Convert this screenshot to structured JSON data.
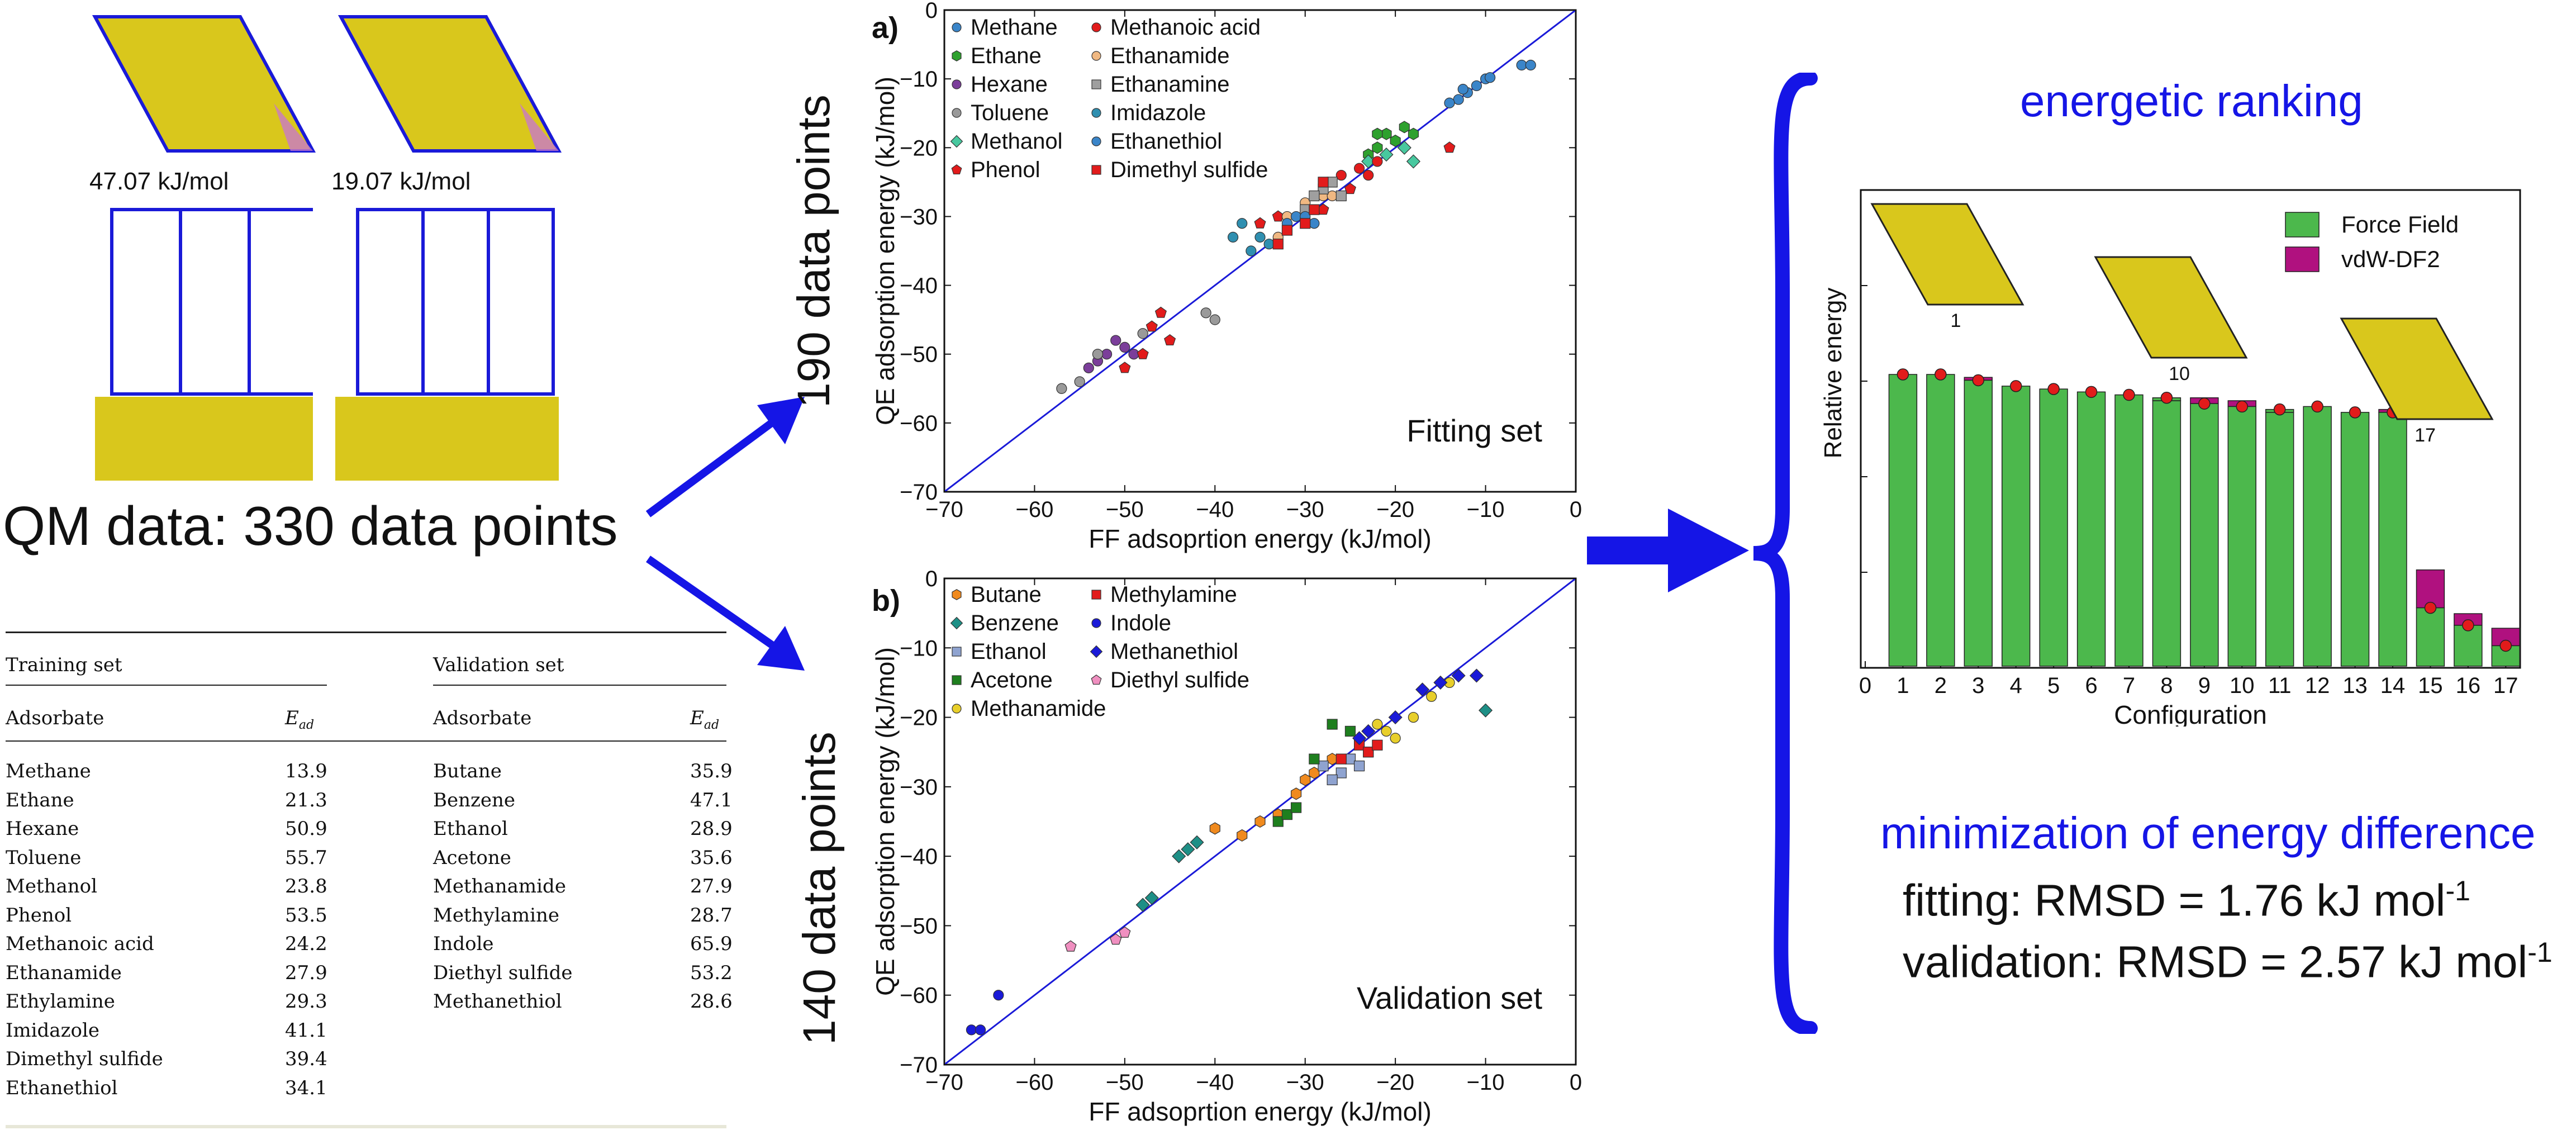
{
  "left_panel": {
    "snapshot1_energy": "47.07 kJ/mol",
    "snapshot2_energy": "19.07 kJ/mol",
    "qm_data_title": "QM data: 330 data points"
  },
  "table": {
    "training_header": "Training set",
    "validation_header": "Validation set",
    "col_adsorbate": "Adsorbate",
    "col_ead": "E",
    "col_ead_sub": "ad",
    "training_rows": [
      {
        "name": "Methane",
        "value": "13.9"
      },
      {
        "name": "Ethane",
        "value": "21.3"
      },
      {
        "name": "Hexane",
        "value": "50.9"
      },
      {
        "name": "Toluene",
        "value": "55.7"
      },
      {
        "name": "Methanol",
        "value": "23.8"
      },
      {
        "name": "Phenol",
        "value": "53.5"
      },
      {
        "name": "Methanoic acid",
        "value": "24.2"
      },
      {
        "name": "Ethanamide",
        "value": "27.9"
      },
      {
        "name": "Ethylamine",
        "value": "29.3"
      },
      {
        "name": "Imidazole",
        "value": "41.1"
      },
      {
        "name": "Dimethyl sulfide",
        "value": "39.4"
      },
      {
        "name": "Ethanethiol",
        "value": "34.1"
      }
    ],
    "validation_rows": [
      {
        "name": "Butane",
        "value": "35.9"
      },
      {
        "name": "Benzene",
        "value": "47.1"
      },
      {
        "name": "Ethanol",
        "value": "28.9"
      },
      {
        "name": "Acetone",
        "value": "35.6"
      },
      {
        "name": "Methanamide",
        "value": "27.9"
      },
      {
        "name": "Methylamine",
        "value": "28.7"
      },
      {
        "name": "Indole",
        "value": "65.9"
      },
      {
        "name": "Diethyl sulfide",
        "value": "53.2"
      },
      {
        "name": "Methanethiol",
        "value": "28.6"
      }
    ]
  },
  "side_labels": {
    "fitting_points": "190 data points",
    "validation_points": "140 data points"
  },
  "right_panel": {
    "ranking_title": "energetic ranking",
    "minimization_title": "minimization of energy difference",
    "fitting_rmsd": "fitting: RMSD = 1.76 kJ mol",
    "validation_rmsd": "validation: RMSD = 2.57 kJ mol",
    "rmsd_exponent": "-1",
    "config_labels": [
      "1",
      "10",
      "17"
    ]
  },
  "colors": {
    "accent_blue": "#1515e6",
    "ff_green": "#4cb84c",
    "vdw_magenta": "#b0117f",
    "point_red": "#e21b1b"
  },
  "chart_data": [
    {
      "id": "a",
      "panel_label": "a)",
      "type": "scatter",
      "xlabel": "FF adsoprtion energy (kJ/mol)",
      "ylabel": "QE adsorption energy (kJ/mol)",
      "annotation": "Fitting set",
      "xlim": [
        -70,
        0
      ],
      "ylim": [
        -70,
        0
      ],
      "xticks": [
        -70,
        -60,
        -50,
        -40,
        -30,
        -20,
        -10,
        0
      ],
      "yticks": [
        0,
        -10,
        -20,
        -30,
        -40,
        -50,
        -60,
        -70
      ],
      "diagonal": true,
      "legend_cols": [
        [
          "Methane",
          "Ethane",
          "Hexane",
          "Toluene",
          "Methanol",
          "Phenol"
        ],
        [
          "Methanoic acid",
          "Ethanamide",
          "Ethanamine",
          "Imidazole",
          "Ethanethiol",
          "Dimethyl sulfide"
        ]
      ],
      "series": [
        {
          "name": "Methane",
          "color": "#3a85c9",
          "marker": "circle",
          "points": [
            [
              -13,
              -13
            ],
            [
              -12,
              -12
            ],
            [
              -11,
              -11
            ],
            [
              -10,
              -10
            ],
            [
              -9.5,
              -9.8
            ],
            [
              -6,
              -8
            ],
            [
              -5,
              -8
            ],
            [
              -14,
              -13.5
            ],
            [
              -12.5,
              -11.5
            ]
          ]
        },
        {
          "name": "Ethane",
          "color": "#2ea12e",
          "marker": "hex",
          "points": [
            [
              -22,
              -20
            ],
            [
              -21,
              -18
            ],
            [
              -20,
              -19
            ],
            [
              -19,
              -17
            ],
            [
              -23,
              -21
            ],
            [
              -18,
              -18
            ],
            [
              -22,
              -18
            ]
          ]
        },
        {
          "name": "Hexane",
          "color": "#7b3e9a",
          "marker": "circle",
          "points": [
            [
              -52,
              -50
            ],
            [
              -50,
              -49
            ],
            [
              -54,
              -52
            ],
            [
              -49,
              -50
            ],
            [
              -51,
              -48
            ],
            [
              -53,
              -51
            ]
          ]
        },
        {
          "name": "Toluene",
          "color": "#9a9a9a",
          "marker": "circle",
          "points": [
            [
              -57,
              -55
            ],
            [
              -55,
              -54
            ],
            [
              -53,
              -50
            ],
            [
              -48,
              -47
            ],
            [
              -41,
              -44
            ],
            [
              -40,
              -45
            ]
          ]
        },
        {
          "name": "Methanol",
          "color": "#48c89f",
          "marker": "diamond",
          "points": [
            [
              -23,
              -22
            ],
            [
              -21,
              -21
            ],
            [
              -18,
              -22
            ],
            [
              -19,
              -20
            ]
          ]
        },
        {
          "name": "Phenol",
          "color": "#e21b1b",
          "marker": "pentagon",
          "points": [
            [
              -50,
              -52
            ],
            [
              -48,
              -50
            ],
            [
              -46,
              -44
            ],
            [
              -45,
              -48
            ],
            [
              -47,
              -46
            ],
            [
              -33,
              -30
            ],
            [
              -28,
              -29
            ],
            [
              -25,
              -26
            ],
            [
              -14,
              -20
            ],
            [
              -35,
              -31
            ]
          ]
        },
        {
          "name": "Methanoic acid",
          "color": "#e21b1b",
          "marker": "circle",
          "points": [
            [
              -26,
              -24
            ],
            [
              -24,
              -23
            ],
            [
              -22,
              -22
            ],
            [
              -23,
              -24
            ]
          ]
        },
        {
          "name": "Ethanamide",
          "color": "#f0b882",
          "marker": "circle",
          "points": [
            [
              -30,
              -28
            ],
            [
              -28,
              -27
            ],
            [
              -27,
              -27
            ],
            [
              -33,
              -33
            ],
            [
              -32,
              -30
            ]
          ]
        },
        {
          "name": "Ethanamine",
          "color": "#9f9f9f",
          "marker": "square",
          "points": [
            [
              -30,
              -29
            ],
            [
              -28,
              -26
            ],
            [
              -27,
              -25
            ],
            [
              -26,
              -27
            ],
            [
              -29,
              -27
            ]
          ]
        },
        {
          "name": "Imidazole",
          "color": "#2f8fb0",
          "marker": "circle",
          "points": [
            [
              -38,
              -33
            ],
            [
              -36,
              -35
            ],
            [
              -35,
              -33
            ],
            [
              -37,
              -31
            ],
            [
              -34,
              -34
            ]
          ]
        },
        {
          "name": "Ethanethiol",
          "color": "#3a85c9",
          "marker": "circle",
          "points": [
            [
              -32,
              -31
            ],
            [
              -31,
              -30
            ],
            [
              -30,
              -30
            ],
            [
              -29,
              -31
            ]
          ]
        },
        {
          "name": "Dimethyl sulfide",
          "color": "#e21b1b",
          "marker": "square",
          "points": [
            [
              -33,
              -34
            ],
            [
              -32,
              -32
            ],
            [
              -29,
              -29
            ],
            [
              -28,
              -25
            ],
            [
              -30,
              -31
            ]
          ]
        }
      ]
    },
    {
      "id": "b",
      "panel_label": "b)",
      "type": "scatter",
      "xlabel": "FF adsoprtion energy (kJ/mol)",
      "ylabel": "QE adsorption energy (kJ/mol)",
      "annotation": "Validation set",
      "xlim": [
        -70,
        0
      ],
      "ylim": [
        -70,
        0
      ],
      "xticks": [
        -70,
        -60,
        -50,
        -40,
        -30,
        -20,
        -10,
        0
      ],
      "yticks": [
        0,
        -10,
        -20,
        -30,
        -40,
        -50,
        -60,
        -70
      ],
      "diagonal": true,
      "legend_cols": [
        [
          "Butane",
          "Benzene",
          "Ethanol",
          "Acetone",
          "Methanamide"
        ],
        [
          "Methylamine",
          "Indole",
          "Methanethiol",
          "Diethyl sulfide"
        ]
      ],
      "series": [
        {
          "name": "Butane",
          "color": "#f08a1e",
          "marker": "hex",
          "points": [
            [
              -40,
              -36
            ],
            [
              -35,
              -35
            ],
            [
              -33,
              -34
            ],
            [
              -31,
              -31
            ],
            [
              -29,
              -28
            ],
            [
              -27,
              -26
            ],
            [
              -37,
              -37
            ],
            [
              -30,
              -29
            ]
          ]
        },
        {
          "name": "Benzene",
          "color": "#1e8f86",
          "marker": "diamond",
          "points": [
            [
              -44,
              -40
            ],
            [
              -43,
              -39
            ],
            [
              -42,
              -38
            ],
            [
              -47,
              -46
            ],
            [
              -48,
              -47
            ],
            [
              -10,
              -19
            ]
          ]
        },
        {
          "name": "Ethanol",
          "color": "#8fa3d0",
          "marker": "square",
          "points": [
            [
              -28,
              -27
            ],
            [
              -26,
              -28
            ],
            [
              -25,
              -26
            ],
            [
              -24,
              -27
            ],
            [
              -27,
              -29
            ],
            [
              -23,
              -25
            ]
          ]
        },
        {
          "name": "Acetone",
          "color": "#1e7f1e",
          "marker": "square",
          "points": [
            [
              -33,
              -35
            ],
            [
              -32,
              -34
            ],
            [
              -31,
              -33
            ],
            [
              -29,
              -26
            ],
            [
              -27,
              -21
            ],
            [
              -25,
              -22
            ]
          ]
        },
        {
          "name": "Methanamide",
          "color": "#e8cf2a",
          "marker": "circle",
          "points": [
            [
              -22,
              -21
            ],
            [
              -21,
              -22
            ],
            [
              -18,
              -20
            ],
            [
              -16,
              -17
            ],
            [
              -14,
              -15
            ],
            [
              -20,
              -23
            ]
          ]
        },
        {
          "name": "Methylamine",
          "color": "#e21b1b",
          "marker": "square",
          "points": [
            [
              -26,
              -26
            ],
            [
              -24,
              -24
            ],
            [
              -23,
              -25
            ],
            [
              -22,
              -24
            ]
          ]
        },
        {
          "name": "Indole",
          "color": "#1a1ad8",
          "marker": "circle",
          "points": [
            [
              -67,
              -65
            ],
            [
              -66,
              -65
            ],
            [
              -64,
              -60
            ]
          ]
        },
        {
          "name": "Methanethiol",
          "color": "#1a1ad8",
          "marker": "diamond",
          "points": [
            [
              -24,
              -23
            ],
            [
              -23,
              -22
            ],
            [
              -20,
              -20
            ],
            [
              -17,
              -16
            ],
            [
              -15,
              -15
            ],
            [
              -13,
              -14
            ],
            [
              -11,
              -14
            ]
          ]
        },
        {
          "name": "Diethyl sulfide",
          "color": "#f08fc0",
          "marker": "pentagon",
          "points": [
            [
              -56,
              -53
            ],
            [
              -51,
              -52
            ],
            [
              -50,
              -51
            ]
          ]
        }
      ]
    },
    {
      "id": "c",
      "type": "bar",
      "xlabel": "Configuration",
      "ylabel": "Relative energy",
      "legend": [
        "Force Field",
        "vdW-DF2"
      ],
      "categories": [
        "1",
        "2",
        "3",
        "4",
        "5",
        "6",
        "7",
        "8",
        "9",
        "10",
        "11",
        "12",
        "13",
        "14",
        "15",
        "16",
        "17"
      ],
      "xticks": [
        "0",
        "1",
        "2",
        "3",
        "4",
        "5",
        "6",
        "7",
        "8",
        "9",
        "10",
        "11",
        "12",
        "13",
        "14",
        "15",
        "16",
        "17"
      ],
      "ylim": [
        0,
        100
      ],
      "series": [
        {
          "name": "Force Field",
          "values": [
            100,
            100,
            98,
            96,
            95,
            94,
            93,
            92,
            90,
            89,
            88,
            89,
            87,
            87,
            20,
            14,
            7
          ]
        },
        {
          "name": "vdW-DF2",
          "values": [
            100,
            100,
            99,
            96,
            95,
            94,
            93,
            91,
            92,
            91,
            87,
            89,
            87,
            88,
            33,
            18,
            13
          ]
        }
      ]
    }
  ]
}
